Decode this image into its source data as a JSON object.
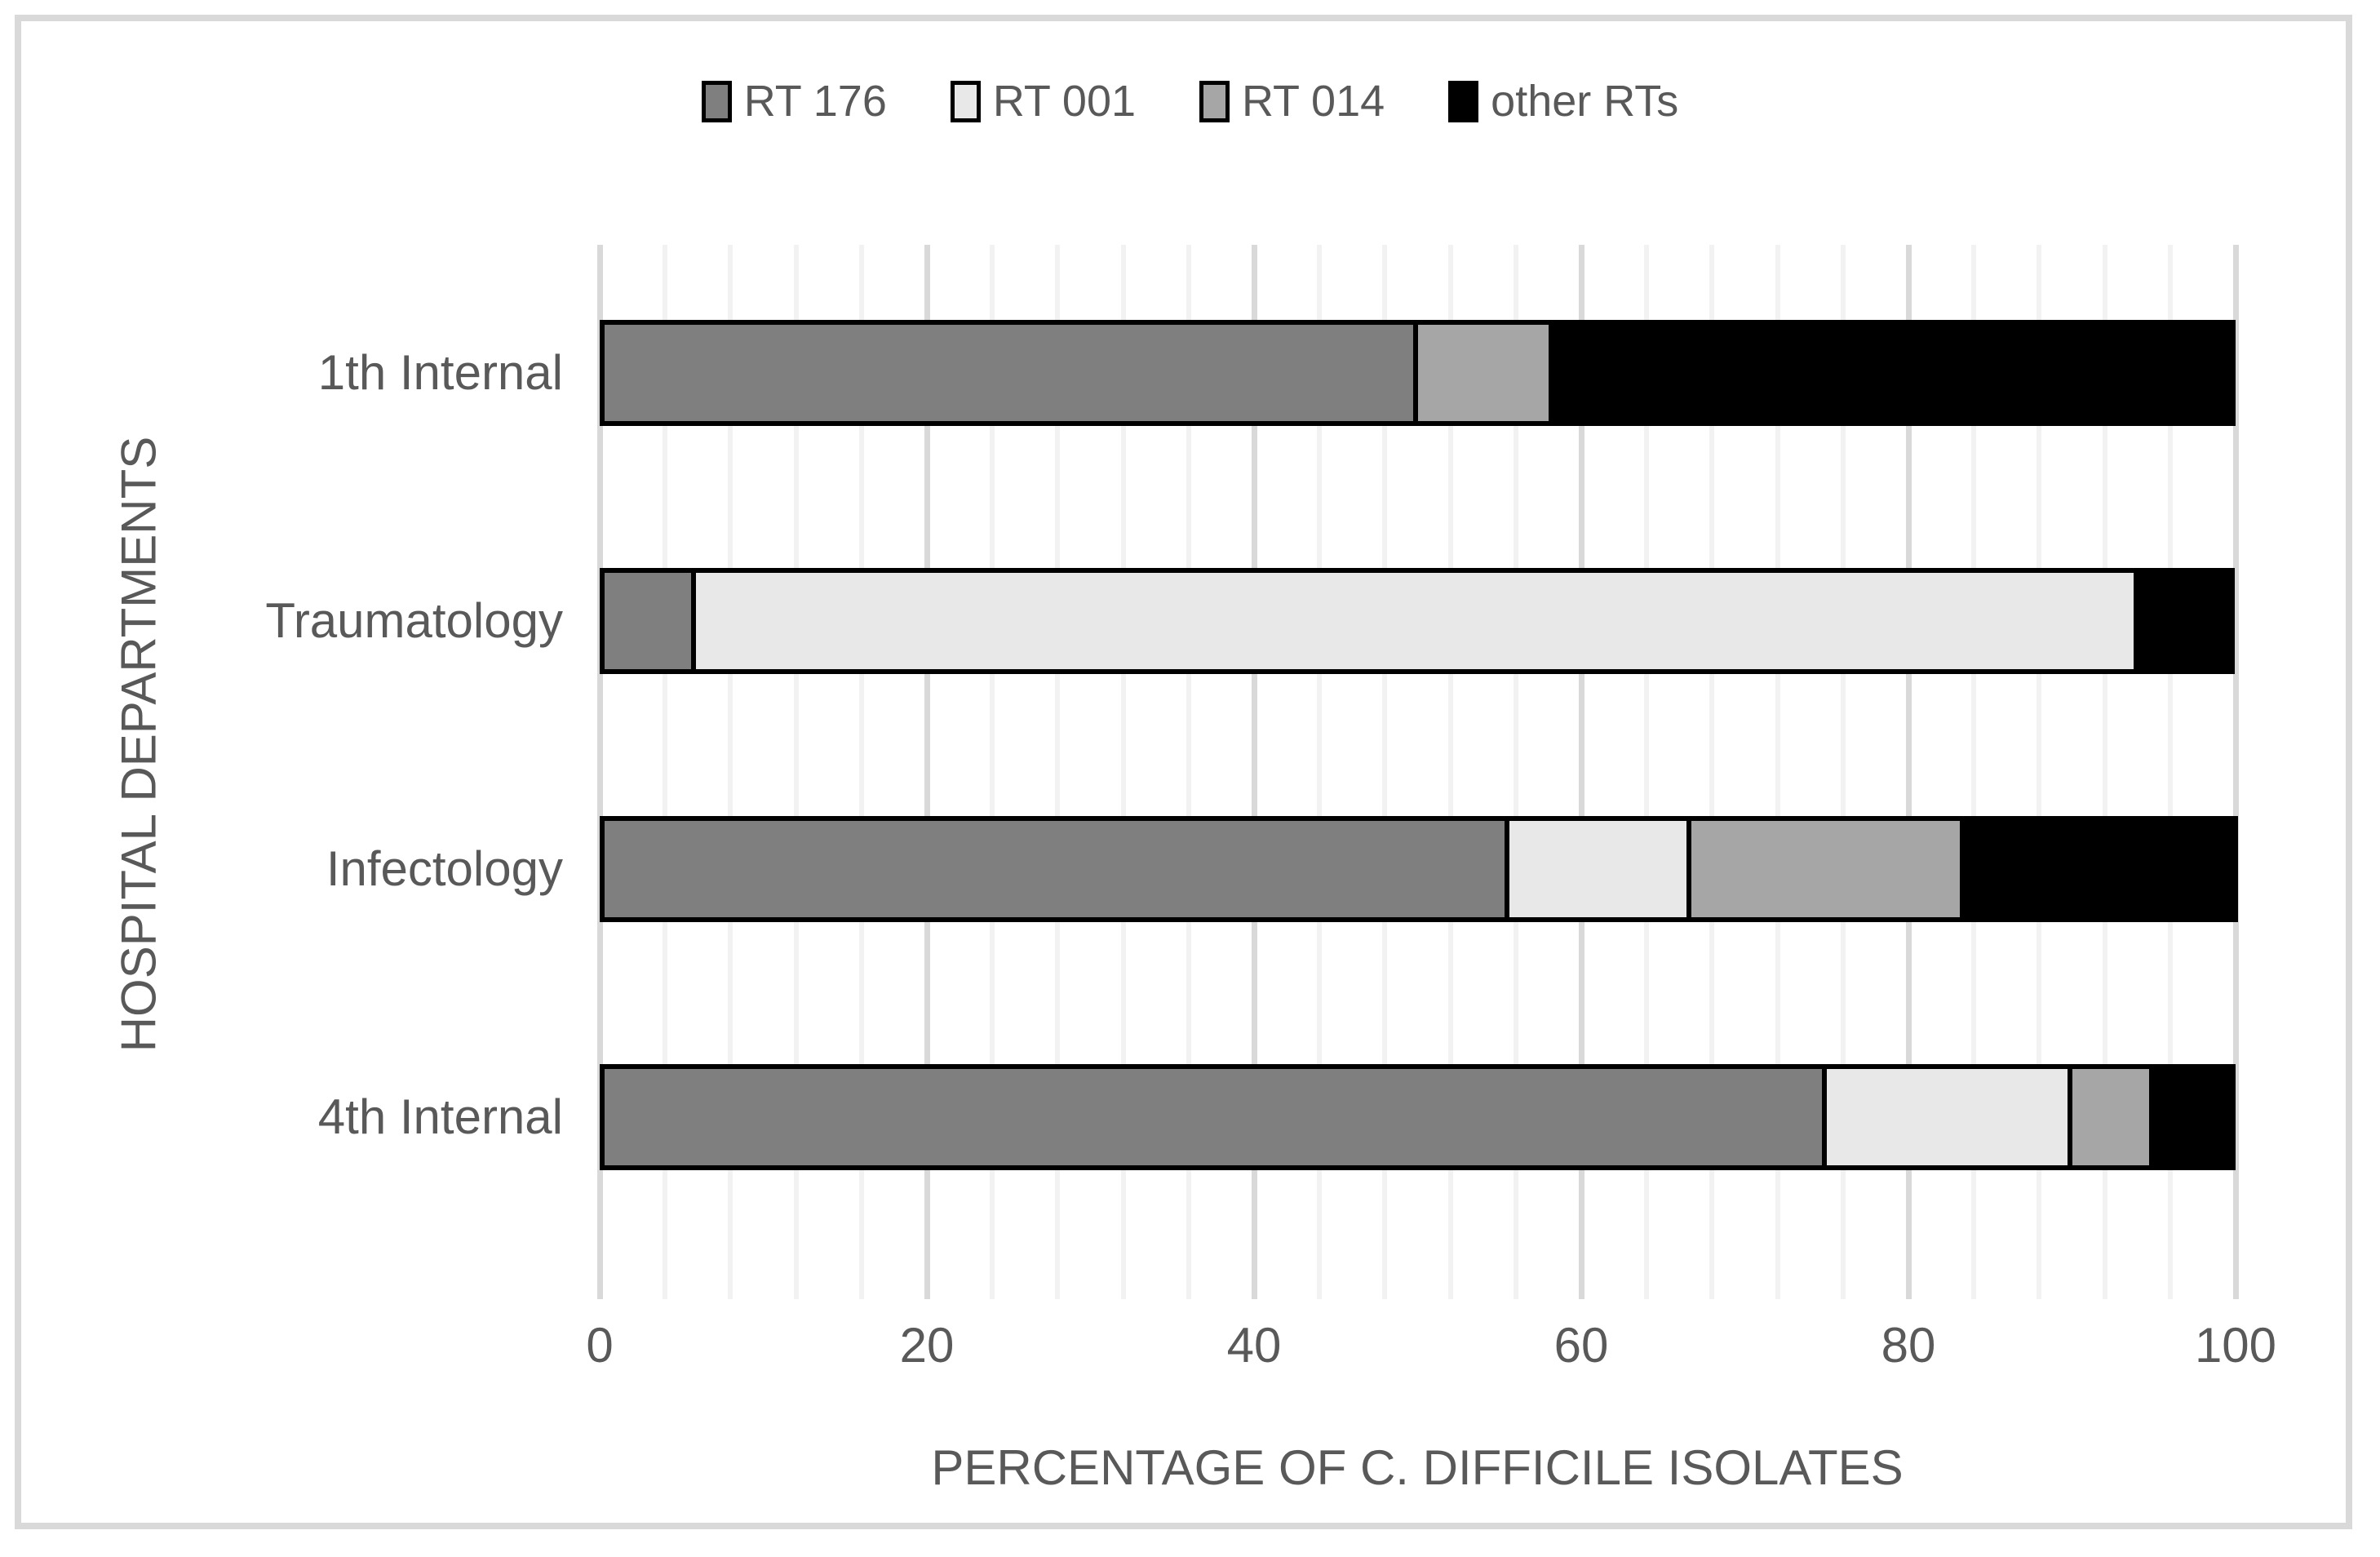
{
  "chart_data": {
    "type": "bar",
    "orientation": "horizontal-stacked",
    "title": "",
    "xlabel": "PERCENTAGE OF C. DIFFICILE ISOLATES",
    "ylabel": "HOSPITAL DEPARTMENTS",
    "categories": [
      "1th Internal",
      "Traumatology",
      "Infectology",
      "4th Internal"
    ],
    "series": [
      {
        "name": "RT 176",
        "color": "#7f7f7f",
        "values": [
          50.0,
          5.9,
          55.6,
          75.0
        ]
      },
      {
        "name": "RT 001",
        "color": "#e8e8e8",
        "values": [
          0.0,
          88.2,
          11.1,
          15.0
        ]
      },
      {
        "name": "RT 014",
        "color": "#a6a6a6",
        "values": [
          8.3,
          0.0,
          16.7,
          5.0
        ]
      },
      {
        "name": "other RTs",
        "color": "#000000",
        "values": [
          41.7,
          5.9,
          16.7,
          5.0
        ]
      }
    ],
    "xlim": [
      0,
      100
    ],
    "xticks": [
      0,
      20,
      40,
      60,
      80,
      100
    ],
    "minor_gridline_unit": 4,
    "major_gridline_unit": 20,
    "grid": true,
    "legend_position": "top"
  },
  "style": {
    "text_color": "#595959",
    "minor_gridline_color": "#f2f2f2",
    "major_gridline_color": "#d9d9d9",
    "segment_border_color": "#000000",
    "frame_border_color": "#d9d9d9",
    "background": "#ffffff"
  }
}
